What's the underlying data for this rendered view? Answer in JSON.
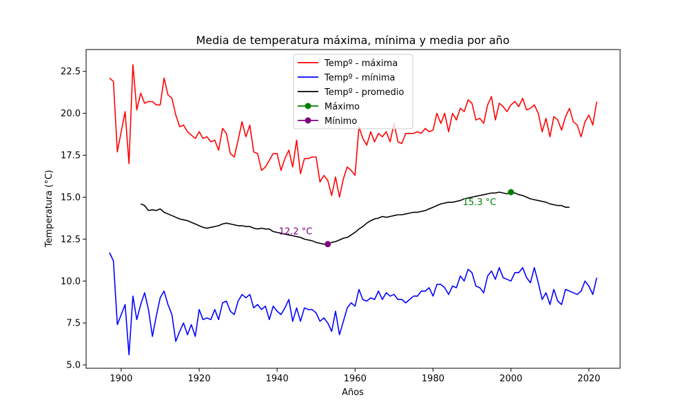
{
  "chart_data": {
    "type": "line",
    "title": "Media de temperatura máxima, mínima y media por año",
    "xlabel": "Años",
    "ylabel": "Temperatura (°C)",
    "xlim": [
      1891,
      2028
    ],
    "ylim": [
      4.8,
      23.8
    ],
    "xticks": [
      1900,
      1920,
      1940,
      1960,
      1980,
      2000,
      2020
    ],
    "yticks": [
      5.0,
      7.5,
      10.0,
      12.5,
      15.0,
      17.5,
      20.0,
      22.5
    ],
    "ytick_labels": [
      "5.0",
      "7.5",
      "10.0",
      "12.5",
      "15.0",
      "17.5",
      "20.0",
      "22.5"
    ],
    "grid": false,
    "legend_position": "top-center",
    "colors": {
      "max": "#ff0000",
      "min": "#0000ff",
      "avg": "#000000",
      "peak": "#008000",
      "low": "#800080"
    },
    "x_max_series": [
      1897,
      1898,
      1899,
      1900,
      1901,
      1902,
      1903,
      1904,
      1905,
      1906,
      1907,
      1908,
      1909,
      1910,
      1911,
      1912,
      1913,
      1914,
      1915,
      1916,
      1917,
      1918,
      1919,
      1920,
      1921,
      1922,
      1923,
      1924,
      1925,
      1926,
      1927,
      1928,
      1929,
      1930,
      1931,
      1932,
      1933,
      1934,
      1935,
      1936,
      1937,
      1938,
      1939,
      1940,
      1941,
      1942,
      1943,
      1944,
      1945,
      1946,
      1947,
      1948,
      1949,
      1950,
      1951,
      1952,
      1953,
      1954,
      1955,
      1956,
      1957,
      1958,
      1959,
      1960,
      1961,
      1962,
      1963,
      1964,
      1965,
      1966,
      1967,
      1968,
      1969,
      1970,
      1971,
      1972,
      1973,
      1974,
      1975,
      1976,
      1977,
      1978,
      1979,
      1980,
      1981,
      1982,
      1983,
      1984,
      1985,
      1986,
      1987,
      1988,
      1989,
      1990,
      1991,
      1992,
      1993,
      1994,
      1995,
      1996,
      1997,
      1998,
      1999,
      2000,
      2001,
      2002,
      2003,
      2004,
      2005,
      2006,
      2007,
      2008,
      2009,
      2010,
      2011,
      2012,
      2013,
      2014,
      2015,
      2016,
      2017,
      2018,
      2019,
      2020,
      2021,
      2022
    ],
    "series": [
      {
        "name": "Tempº - máxima",
        "color": "#ff0000",
        "values": [
          22.1,
          21.9,
          17.7,
          18.9,
          20.1,
          17.0,
          22.9,
          20.2,
          21.2,
          20.6,
          20.7,
          20.7,
          20.5,
          20.5,
          22.1,
          21.1,
          20.9,
          19.9,
          19.2,
          19.3,
          18.9,
          18.7,
          18.5,
          18.9,
          18.5,
          18.6,
          18.3,
          18.4,
          17.8,
          19.1,
          18.8,
          17.6,
          17.4,
          18.4,
          19.5,
          18.6,
          19.3,
          17.7,
          17.6,
          16.6,
          16.8,
          17.2,
          17.6,
          17.6,
          16.6,
          17.3,
          17.8,
          16.8,
          18.4,
          16.4,
          17.3,
          17.3,
          17.4,
          17.4,
          15.9,
          16.3,
          16.0,
          15.1,
          16.2,
          15.0,
          16.1,
          16.8,
          16.6,
          16.3,
          19.2,
          18.5,
          18.1,
          18.9,
          18.3,
          18.8,
          18.6,
          18.9,
          18.3,
          19.4,
          18.3,
          18.2,
          18.8,
          18.8,
          18.8,
          18.9,
          18.8,
          19.1,
          18.9,
          19.0,
          20.0,
          19.4,
          20.0,
          18.9,
          20.0,
          19.6,
          20.3,
          20.1,
          20.8,
          20.6,
          19.6,
          19.7,
          19.4,
          20.5,
          21.0,
          19.6,
          20.6,
          20.4,
          20.1,
          20.5,
          20.7,
          20.4,
          20.9,
          20.2,
          20.3,
          20.5,
          20.0,
          18.9,
          19.7,
          18.6,
          19.8,
          19.6,
          19.0,
          19.8,
          20.3,
          19.5,
          19.3,
          18.6,
          19.5,
          19.9,
          19.3,
          20.7
        ]
      },
      {
        "name": "Tempº - mínima",
        "color": "#0000ff",
        "values": [
          11.7,
          11.2,
          7.4,
          8.0,
          8.6,
          5.6,
          9.1,
          7.7,
          8.6,
          9.3,
          8.3,
          6.7,
          7.9,
          9.0,
          9.4,
          8.6,
          8.0,
          6.4,
          7.0,
          7.5,
          6.8,
          7.4,
          6.7,
          8.3,
          7.7,
          7.8,
          7.7,
          8.3,
          7.7,
          8.7,
          8.8,
          8.2,
          8.0,
          8.8,
          9.2,
          9.0,
          9.2,
          8.4,
          8.6,
          8.3,
          8.5,
          7.7,
          8.5,
          8.2,
          8.0,
          8.4,
          8.9,
          7.6,
          8.4,
          7.6,
          8.4,
          8.3,
          8.3,
          8.1,
          7.6,
          7.8,
          7.5,
          7.0,
          8.2,
          6.8,
          7.6,
          8.4,
          8.7,
          8.5,
          9.5,
          8.9,
          8.8,
          9.0,
          8.9,
          9.4,
          8.9,
          9.3,
          9.1,
          9.2,
          8.9,
          8.9,
          8.7,
          8.9,
          9.1,
          9.1,
          9.4,
          9.4,
          9.6,
          9.1,
          9.8,
          9.8,
          9.6,
          9.2,
          9.7,
          9.6,
          10.3,
          10.0,
          10.7,
          10.5,
          9.7,
          9.6,
          9.3,
          10.3,
          10.6,
          10.1,
          10.8,
          10.2,
          10.1,
          10.0,
          10.5,
          10.5,
          10.8,
          10.2,
          9.9,
          10.8,
          9.9,
          8.9,
          9.3,
          8.6,
          9.5,
          8.8,
          8.6,
          9.5,
          9.4,
          9.3,
          9.2,
          9.4,
          10.0,
          9.7,
          9.2,
          10.2
        ]
      },
      {
        "name": "Tempº - promedio",
        "color": "#000000",
        "x_start": 1905,
        "values": [
          14.6,
          14.5,
          14.2,
          14.25,
          14.2,
          14.3,
          14.1,
          14.0,
          13.9,
          13.8,
          13.7,
          13.65,
          13.6,
          13.5,
          13.4,
          13.3,
          13.2,
          13.15,
          13.2,
          13.25,
          13.3,
          13.4,
          13.45,
          13.4,
          13.35,
          13.3,
          13.3,
          13.25,
          13.25,
          13.15,
          13.1,
          13.15,
          13.1,
          13.1,
          12.95,
          12.9,
          12.85,
          12.8,
          12.75,
          12.7,
          12.65,
          12.6,
          12.5,
          12.45,
          12.4,
          12.3,
          12.25,
          12.2,
          12.2,
          12.3,
          12.35,
          12.45,
          12.55,
          12.6,
          12.75,
          12.9,
          13.1,
          13.25,
          13.45,
          13.6,
          13.7,
          13.75,
          13.85,
          13.8,
          13.85,
          13.9,
          13.95,
          13.95,
          14.0,
          14.05,
          14.1,
          14.1,
          14.15,
          14.2,
          14.3,
          14.4,
          14.5,
          14.6,
          14.65,
          14.7,
          14.7,
          14.75,
          14.8,
          14.9,
          14.95,
          15.0,
          15.05,
          15.1,
          15.15,
          15.2,
          15.25,
          15.25,
          15.3,
          15.25,
          15.2,
          15.3,
          15.25,
          15.15,
          15.1,
          15.0,
          14.9,
          14.85,
          14.8,
          14.75,
          14.7,
          14.6,
          14.55,
          14.5,
          14.5,
          14.4,
          14.4
        ]
      }
    ],
    "annotations": {
      "max": {
        "name": "Máximo",
        "x": 2000,
        "y": 15.3,
        "label": "15.3 °C"
      },
      "min": {
        "name": "Mínimo",
        "x": 1953,
        "y": 12.2,
        "label": "12.2 °C"
      }
    },
    "legend": [
      "Tempº - máxima",
      "Tempº - mínima",
      "Tempº - promedio",
      "Máximo",
      "Mínimo"
    ]
  }
}
